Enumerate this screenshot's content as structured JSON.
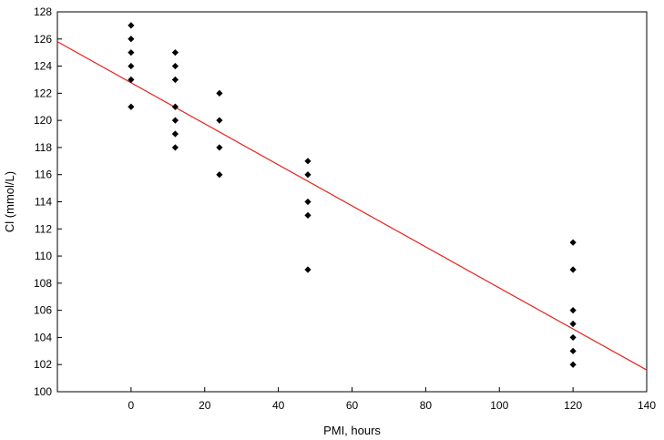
{
  "chart_data": {
    "type": "scatter",
    "title": "",
    "xlabel": "PMI, hours",
    "ylabel": "Cl (mmol/L)",
    "xlim": [
      -20,
      140
    ],
    "ylim": [
      100,
      128
    ],
    "x_ticks": [
      0,
      20,
      40,
      60,
      80,
      100,
      120,
      140
    ],
    "y_ticks": [
      100,
      102,
      104,
      106,
      108,
      110,
      112,
      114,
      116,
      118,
      120,
      122,
      124,
      126,
      128
    ],
    "grid": false,
    "series": [
      {
        "marker": "diamond",
        "color": "#000000",
        "points": [
          {
            "x": 0,
            "y": 127
          },
          {
            "x": 0,
            "y": 126
          },
          {
            "x": 0,
            "y": 125
          },
          {
            "x": 0,
            "y": 124
          },
          {
            "x": 0,
            "y": 123
          },
          {
            "x": 0,
            "y": 121
          },
          {
            "x": 12,
            "y": 125
          },
          {
            "x": 12,
            "y": 124
          },
          {
            "x": 12,
            "y": 123
          },
          {
            "x": 12,
            "y": 121
          },
          {
            "x": 12,
            "y": 120
          },
          {
            "x": 12,
            "y": 119
          },
          {
            "x": 12,
            "y": 118
          },
          {
            "x": 24,
            "y": 122
          },
          {
            "x": 24,
            "y": 120
          },
          {
            "x": 24,
            "y": 118
          },
          {
            "x": 24,
            "y": 116
          },
          {
            "x": 48,
            "y": 117
          },
          {
            "x": 48,
            "y": 116
          },
          {
            "x": 48,
            "y": 114
          },
          {
            "x": 48,
            "y": 113
          },
          {
            "x": 48,
            "y": 109
          },
          {
            "x": 120,
            "y": 111
          },
          {
            "x": 120,
            "y": 109
          },
          {
            "x": 120,
            "y": 106
          },
          {
            "x": 120,
            "y": 105
          },
          {
            "x": 120,
            "y": 104
          },
          {
            "x": 120,
            "y": 103
          },
          {
            "x": 120,
            "y": 102
          }
        ]
      }
    ],
    "fit_line": {
      "color": "#e8201c",
      "points": [
        {
          "x": -20,
          "y": 125.8
        },
        {
          "x": 140,
          "y": 101.6
        }
      ]
    }
  }
}
